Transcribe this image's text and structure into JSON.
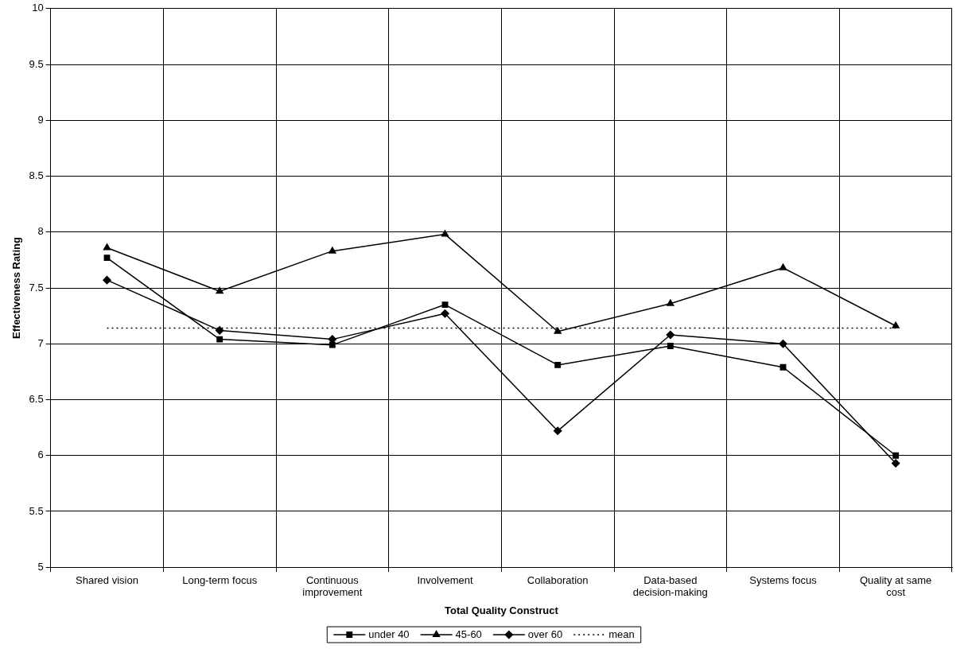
{
  "chart_data": {
    "type": "line",
    "xlabel": "Total Quality Construct",
    "ylabel": "Effectiveness Rating",
    "categories": [
      "Shared vision",
      "Long-term focus",
      "Continuous improvement",
      "Involvement",
      "Collaboration",
      "Data-based decision-making",
      "Systems focus",
      "Quality at same cost"
    ],
    "series": [
      {
        "name": "under 40",
        "color": "#000000",
        "marker": "square",
        "line_style": "solid",
        "values": [
          7.77,
          7.04,
          6.99,
          7.35,
          6.81,
          6.98,
          6.79,
          6.0
        ]
      },
      {
        "name": "45-60",
        "color": "#000000",
        "marker": "triangle",
        "line_style": "solid",
        "values": [
          7.86,
          7.47,
          7.83,
          7.98,
          7.11,
          7.36,
          7.68,
          7.16
        ]
      },
      {
        "name": "over 60",
        "color": "#000000",
        "marker": "diamond",
        "line_style": "solid",
        "values": [
          7.57,
          7.12,
          7.04,
          7.27,
          6.22,
          7.08,
          7.0,
          5.93
        ]
      },
      {
        "name": "mean",
        "color": "#000000",
        "marker": "none",
        "line_style": "dotted",
        "values": [
          7.14,
          7.14,
          7.14,
          7.14,
          7.14,
          7.14,
          7.14,
          7.14
        ]
      }
    ],
    "ylim": [
      5,
      10
    ],
    "yticks": [
      5,
      5.5,
      6,
      6.5,
      7,
      7.5,
      8,
      8.5,
      9,
      9.5,
      10
    ],
    "grid": true,
    "legend": "bottom"
  }
}
